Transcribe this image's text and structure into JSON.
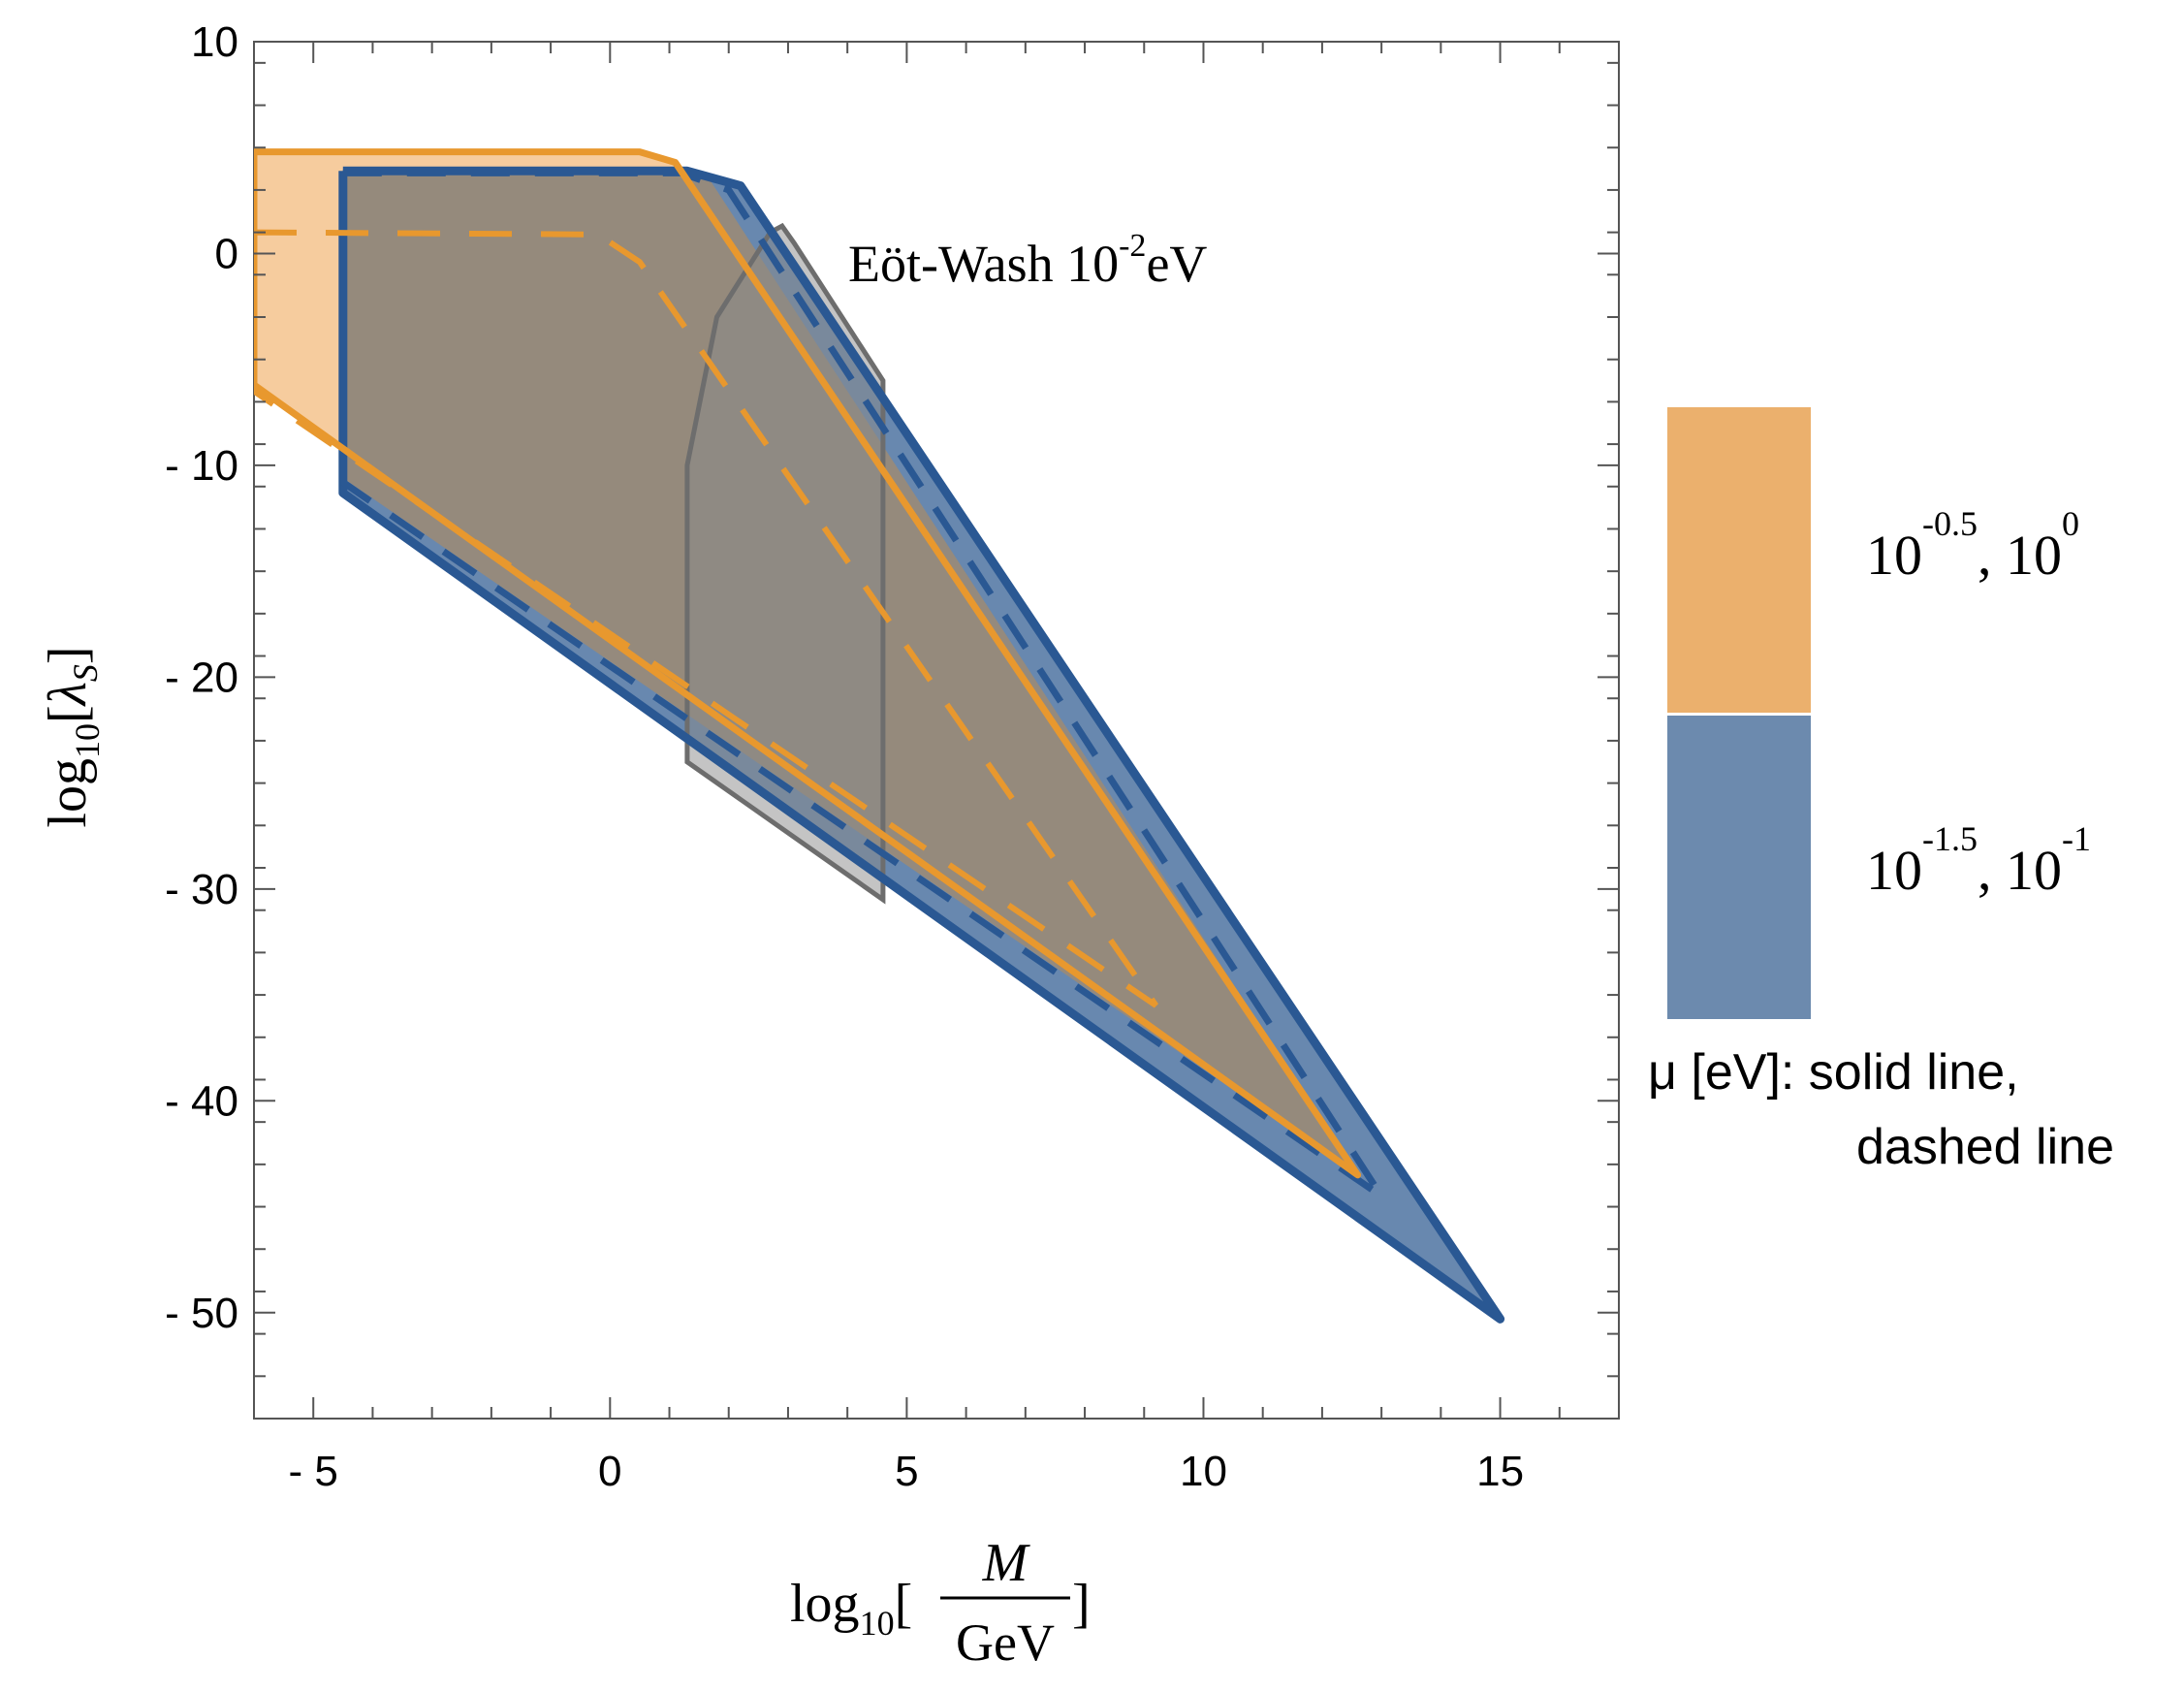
{
  "chart_data": {
    "type": "area",
    "title": "",
    "xlabel": {
      "prefix": "log",
      "sub": "10",
      "open": "[",
      "num": "M",
      "den": "GeV",
      "close": "]"
    },
    "ylabel": {
      "prefix": "log",
      "sub": "10",
      "open": "[",
      "sym": "λ",
      "symsub": "S",
      "close": "]"
    },
    "xlim": [
      -6,
      17
    ],
    "ylim": [
      -55,
      10
    ],
    "xticks": [
      -5,
      0,
      5,
      10,
      15
    ],
    "yticks": [
      10,
      0,
      -10,
      -20,
      -30,
      -40,
      -50
    ],
    "xtick_labels": [
      "- 5",
      "0",
      "5",
      "10",
      "15"
    ],
    "ytick_labels": [
      "10",
      "0",
      "- 10",
      "- 20",
      "- 30",
      "- 40",
      "- 50"
    ],
    "grid": false,
    "annotation": {
      "main": "Eöt-Wash 10",
      "sup": "-2",
      "unit": "eV",
      "x": 4,
      "y": -0.5
    },
    "colors": {
      "orange_fill": "#f4c38d",
      "orange_line": "#e8982e",
      "blue_fill": "#4e73a1",
      "blue_line": "#2a5893",
      "brown_fill": "#9a8b78",
      "gray_fill": "#9e9e9e",
      "gray_line": "#6d6d6d"
    },
    "series": [
      {
        "name": "Eöt-Wash 10^-2 eV",
        "color": "gray",
        "style": "filled",
        "points": [
          [
            1.3,
            -10
          ],
          [
            1.8,
            -3
          ],
          [
            2.7,
            1
          ],
          [
            2.9,
            1.3
          ],
          [
            3.1,
            0.5
          ],
          [
            4.6,
            -6
          ],
          [
            4.6,
            -30.5
          ],
          [
            1.3,
            -24
          ]
        ]
      },
      {
        "name": "μ = 10^-1.5 eV (solid)",
        "color": "blue",
        "style": "solid",
        "points": [
          [
            -4.5,
            3.9
          ],
          [
            1.3,
            3.9
          ],
          [
            2.2,
            3.2
          ],
          [
            15,
            -50.3
          ],
          [
            -4.5,
            -11.3
          ]
        ]
      },
      {
        "name": "μ = 10^-1 eV (dashed)",
        "color": "blue",
        "style": "dashed",
        "points": [
          [
            -4.5,
            3.8
          ],
          [
            1.2,
            3.8
          ],
          [
            2.0,
            3.0
          ],
          [
            13,
            -44.5
          ],
          [
            -4.5,
            -10.8
          ]
        ]
      },
      {
        "name": "μ = 10^-0.5 eV (solid)",
        "color": "orange",
        "style": "solid",
        "points": [
          [
            -6,
            4.8
          ],
          [
            0.5,
            4.8
          ],
          [
            1.1,
            4.3
          ],
          [
            12.6,
            -43.5
          ],
          [
            -6,
            -6.2
          ]
        ]
      },
      {
        "name": "μ = 10^0 eV (dashed)",
        "color": "orange",
        "style": "dashed",
        "points": [
          [
            -6,
            1
          ],
          [
            -0.2,
            0.9
          ],
          [
            0.5,
            -0.4
          ],
          [
            9.2,
            -35.5
          ],
          [
            -6,
            -6.5
          ]
        ]
      }
    ],
    "legend": {
      "placement": "right",
      "entries": [
        {
          "color": "orange",
          "base1": "10",
          "exp1": "-0.5",
          "sep": ", ",
          "base2": "10",
          "exp2": "0"
        },
        {
          "color": "blue",
          "base1": "10",
          "exp1": "-1.5",
          "sep": ", ",
          "base2": "10",
          "exp2": "-1"
        }
      ],
      "caption_line1": "μ [eV]: solid line,",
      "caption_line2": "dashed line"
    }
  }
}
